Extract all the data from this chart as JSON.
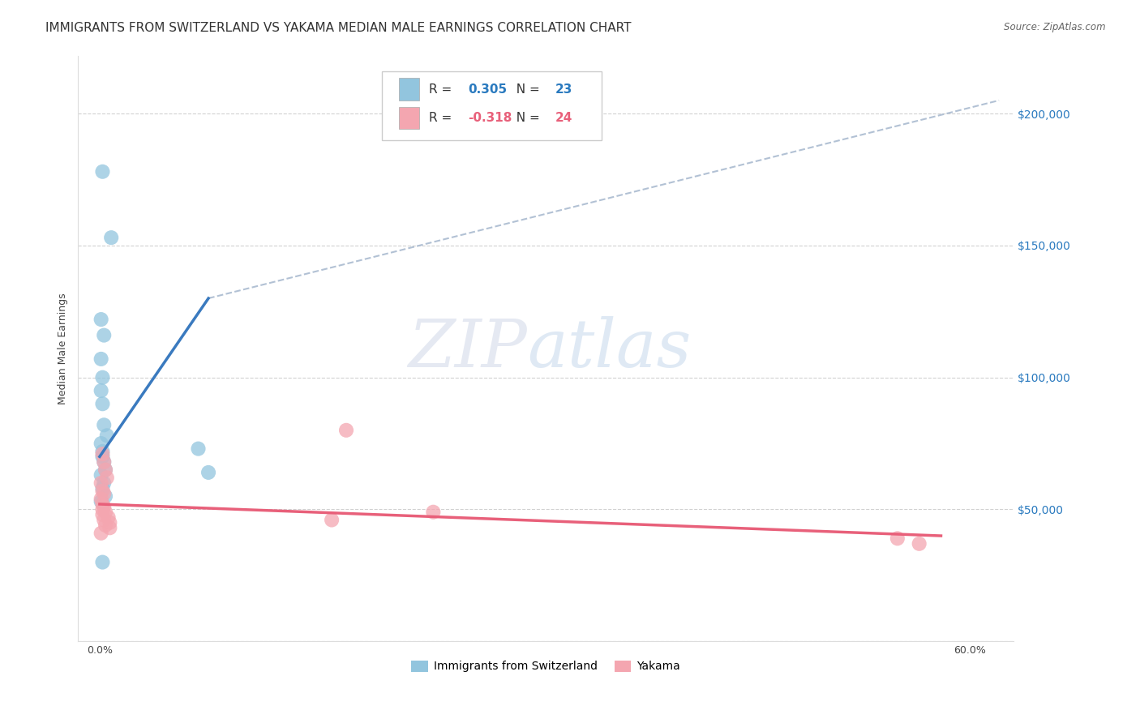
{
  "title": "IMMIGRANTS FROM SWITZERLAND VS YAKAMA MEDIAN MALE EARNINGS CORRELATION CHART",
  "source": "Source: ZipAtlas.com",
  "ylabel_label": "Median Male Earnings",
  "blue_r": 0.305,
  "blue_n": 23,
  "pink_r": -0.318,
  "pink_n": 24,
  "blue_points": [
    [
      0.002,
      178000
    ],
    [
      0.008,
      153000
    ],
    [
      0.001,
      122000
    ],
    [
      0.003,
      116000
    ],
    [
      0.001,
      107000
    ],
    [
      0.002,
      100000
    ],
    [
      0.001,
      95000
    ],
    [
      0.002,
      90000
    ],
    [
      0.003,
      82000
    ],
    [
      0.005,
      78000
    ],
    [
      0.001,
      75000
    ],
    [
      0.002,
      72000
    ],
    [
      0.002,
      70000
    ],
    [
      0.003,
      68000
    ],
    [
      0.004,
      65000
    ],
    [
      0.001,
      63000
    ],
    [
      0.003,
      60000
    ],
    [
      0.002,
      58000
    ],
    [
      0.004,
      55000
    ],
    [
      0.001,
      53000
    ],
    [
      0.068,
      73000
    ],
    [
      0.075,
      64000
    ],
    [
      0.002,
      30000
    ]
  ],
  "pink_points": [
    [
      0.002,
      71000
    ],
    [
      0.003,
      68000
    ],
    [
      0.004,
      65000
    ],
    [
      0.005,
      62000
    ],
    [
      0.001,
      60000
    ],
    [
      0.002,
      57000
    ],
    [
      0.003,
      56000
    ],
    [
      0.001,
      54000
    ],
    [
      0.002,
      52000
    ],
    [
      0.003,
      51000
    ],
    [
      0.002,
      50000
    ],
    [
      0.004,
      49000
    ],
    [
      0.002,
      48000
    ],
    [
      0.006,
      47000
    ],
    [
      0.003,
      46000
    ],
    [
      0.007,
      45000
    ],
    [
      0.004,
      44000
    ],
    [
      0.007,
      43000
    ],
    [
      0.17,
      80000
    ],
    [
      0.23,
      49000
    ],
    [
      0.16,
      46000
    ],
    [
      0.55,
      39000
    ],
    [
      0.565,
      37000
    ],
    [
      0.001,
      41000
    ]
  ],
  "background_color": "#ffffff",
  "blue_color": "#92c5de",
  "pink_color": "#f4a6b0",
  "blue_line_color": "#3a7abf",
  "pink_line_color": "#e8607a",
  "dash_line_color": "#aabbd0",
  "title_fontsize": 11,
  "axis_label_fontsize": 9,
  "tick_fontsize": 9,
  "watermark_zip": "ZIP",
  "watermark_atlas": "atlas",
  "xlim": [
    -0.015,
    0.63
  ],
  "ylim": [
    0,
    222000
  ],
  "blue_line_x": [
    0.0,
    0.075
  ],
  "blue_line_y": [
    70000,
    130000
  ],
  "pink_line_x": [
    0.0,
    0.58
  ],
  "pink_line_y": [
    52000,
    40000
  ],
  "dash_line_x": [
    0.075,
    0.62
  ],
  "dash_line_y": [
    130000,
    205000
  ]
}
